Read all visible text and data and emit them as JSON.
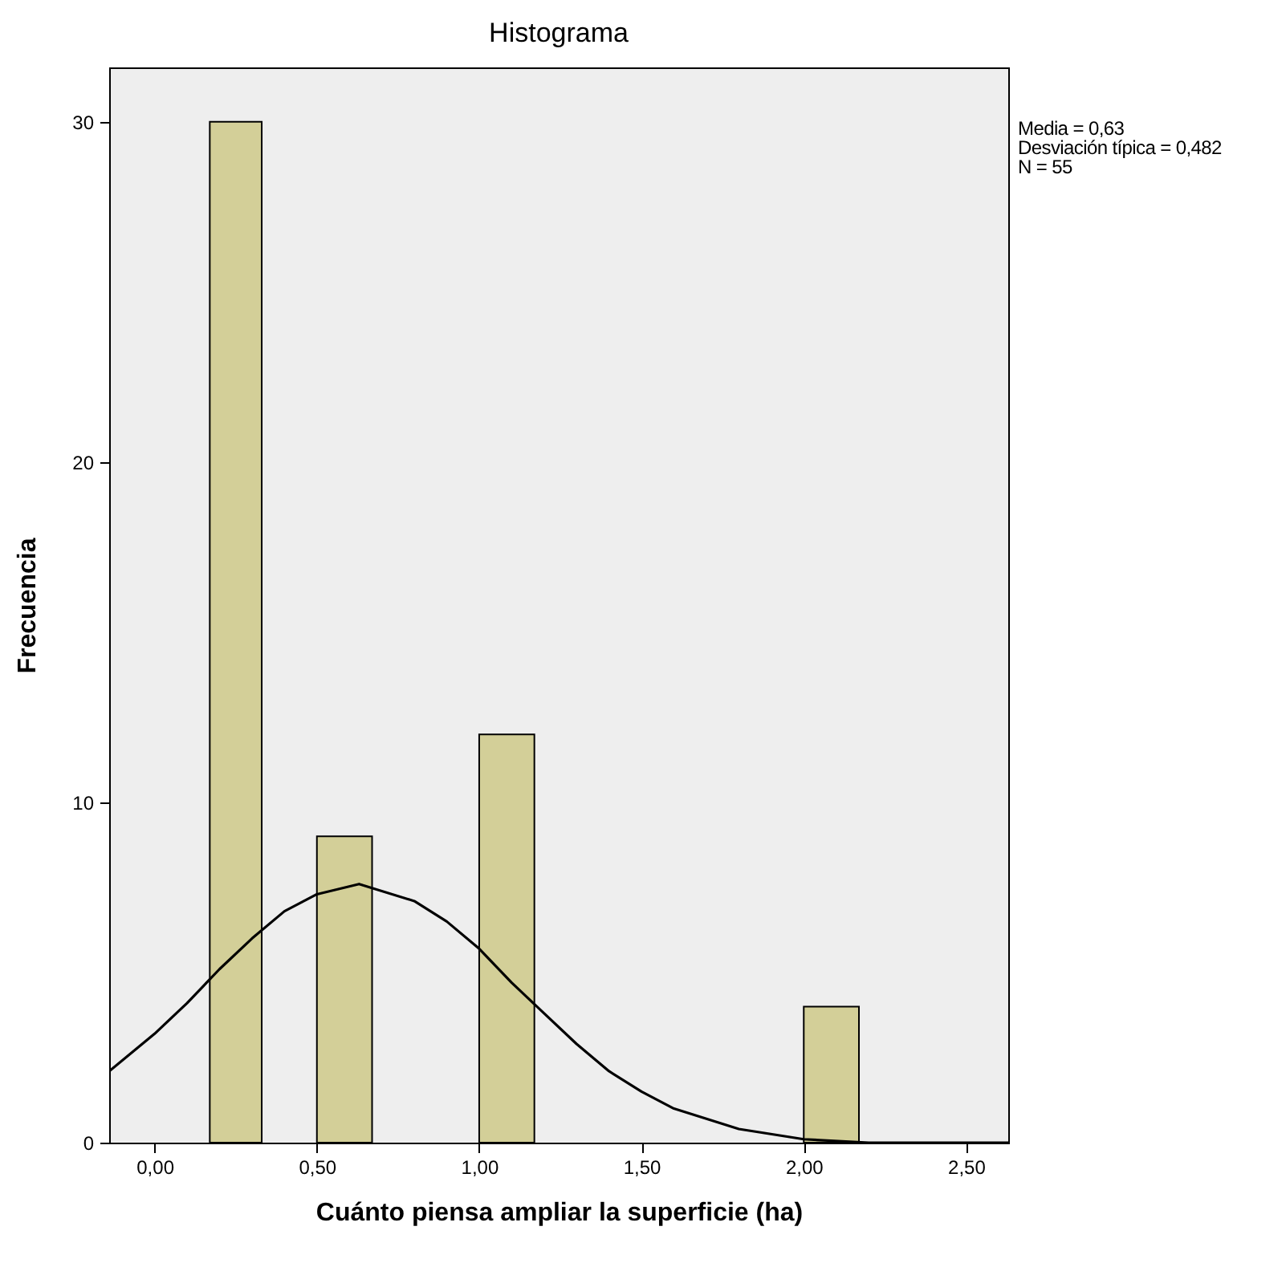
{
  "chart_data": {
    "type": "histogram",
    "title": "Histograma",
    "xlabel": "Cuánto piensa ampliar la superficie (ha)",
    "ylabel": "Frecuencia",
    "annotations": [
      "Media = 0,63",
      "Desviación típica = 0,482",
      "N = 55"
    ],
    "bins": [
      0.17,
      0.33,
      0.5,
      0.67,
      1,
      1.17,
      2,
      2.17
    ],
    "values": [
      30,
      0,
      9,
      0,
      12,
      0,
      4
    ],
    "color": "#d3cf98",
    "series": [
      {
        "type": "line",
        "color": "#000000",
        "x": [
          -0.14,
          0,
          0.1,
          0.2,
          0.3,
          0.4,
          0.5,
          0.63,
          0.8,
          0.9,
          1,
          1.1,
          1.2,
          1.3,
          1.4,
          1.5,
          1.6,
          1.8,
          2,
          2.2,
          2.4,
          2.63
        ],
        "values": [
          2.1,
          3.2,
          4.1,
          5.1,
          6.0,
          6.8,
          7.3,
          7.6,
          7.1,
          6.5,
          5.7,
          4.7,
          3.8,
          2.9,
          2.1,
          1.5,
          1.0,
          0.4,
          0.1,
          0,
          0,
          0
        ]
      }
    ],
    "xlim": [
      -0.14,
      2.63
    ],
    "xticks": [
      {
        "value": 0,
        "label": "0,00"
      },
      {
        "value": 0.5,
        "label": "0,50"
      },
      {
        "value": 1,
        "label": "1,00"
      },
      {
        "value": 1.5,
        "label": "1,50"
      },
      {
        "value": 2,
        "label": "2,00"
      },
      {
        "value": 2.5,
        "label": "2,50"
      }
    ],
    "ylim": [
      0,
      31.6
    ],
    "yticks": [
      0,
      10,
      20,
      30
    ],
    "grid": false
  }
}
